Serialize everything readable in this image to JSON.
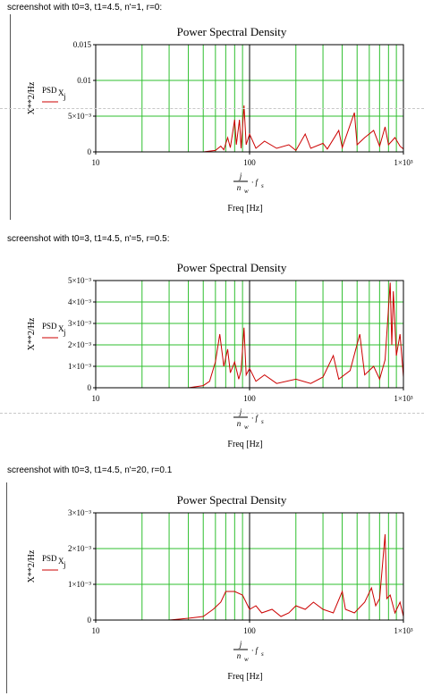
{
  "captions": [
    "screenshot with t0=3, t1=4.5, n'=1, r=0:",
    "screenshot with t0=3, t1=4.5, n'=5, r=0.5:",
    "screenshot with t0=3, t1=4.5, n'=20, r=0.1"
  ],
  "colors": {
    "series": "#cc0000",
    "grid": "#2fbf2f",
    "frame": "#000000",
    "cursor": "#000000"
  },
  "chart_data": [
    {
      "type": "line",
      "title": "Power Spectral Density",
      "xlabel": "Freq [Hz]",
      "xlabel_expr": {
        "num": "j",
        "den": "n_w",
        "tail": "· f_s"
      },
      "ylabel": "X**2/Hz",
      "legend": "PSDX_j",
      "x_scale": "log",
      "xlim": [
        10,
        1000
      ],
      "ylim": [
        0,
        0.015
      ],
      "x_ticks": [
        "10",
        "100",
        "1×10³"
      ],
      "y_ticks": [
        {
          "v": 0,
          "t": "0"
        },
        {
          "v": 0.005,
          "t": "5×10⁻³"
        },
        {
          "v": 0.01,
          "t": "0.01"
        },
        {
          "v": 0.015,
          "t": "0.015"
        }
      ],
      "series": [
        {
          "name": "PSDX_j",
          "points": [
            [
              10,
              0
            ],
            [
              50,
              0
            ],
            [
              60,
              0.0002
            ],
            [
              65,
              0.0008
            ],
            [
              68,
              0.0003
            ],
            [
              72,
              0.002
            ],
            [
              75,
              0.0006
            ],
            [
              80,
              0.0045
            ],
            [
              82,
              0.001
            ],
            [
              86,
              0.0045
            ],
            [
              88,
              0.0005
            ],
            [
              92,
              0.0065
            ],
            [
              95,
              0.001
            ],
            [
              100,
              0.0025
            ],
            [
              110,
              0.0005
            ],
            [
              125,
              0.0015
            ],
            [
              150,
              0.0005
            ],
            [
              180,
              0.001
            ],
            [
              200,
              0.0002
            ],
            [
              230,
              0.0025
            ],
            [
              250,
              0.0005
            ],
            [
              300,
              0.0012
            ],
            [
              320,
              0.0004
            ],
            [
              380,
              0.003
            ],
            [
              400,
              0.0006
            ],
            [
              480,
              0.0055
            ],
            [
              500,
              0.001
            ],
            [
              560,
              0.002
            ],
            [
              640,
              0.003
            ],
            [
              700,
              0.0008
            ],
            [
              760,
              0.0035
            ],
            [
              800,
              0.001
            ],
            [
              880,
              0.002
            ],
            [
              950,
              0.0008
            ],
            [
              1000,
              0.0004
            ]
          ]
        }
      ]
    },
    {
      "type": "line",
      "title": "Power Spectral Density",
      "xlabel": "Freq [Hz]",
      "xlabel_expr": {
        "num": "j",
        "den": "n_w",
        "tail": "· f_s"
      },
      "ylabel": "X**2/Hz",
      "legend": "PSDX_j",
      "x_scale": "log",
      "xlim": [
        10,
        1000
      ],
      "ylim": [
        0,
        0.005
      ],
      "x_ticks": [
        "10",
        "100",
        "1×10³"
      ],
      "y_ticks": [
        {
          "v": 0,
          "t": "0"
        },
        {
          "v": 0.001,
          "t": "1×10⁻³"
        },
        {
          "v": 0.002,
          "t": "2×10⁻³"
        },
        {
          "v": 0.003,
          "t": "3×10⁻³"
        },
        {
          "v": 0.004,
          "t": "4×10⁻³"
        },
        {
          "v": 0.005,
          "t": "5×10⁻³"
        }
      ],
      "series": [
        {
          "name": "PSDX_j",
          "points": [
            [
              10,
              0
            ],
            [
              40,
              0
            ],
            [
              50,
              0.0001
            ],
            [
              55,
              0.0003
            ],
            [
              60,
              0.0012
            ],
            [
              64,
              0.0025
            ],
            [
              68,
              0.001
            ],
            [
              72,
              0.0018
            ],
            [
              75,
              0.0007
            ],
            [
              80,
              0.0012
            ],
            [
              85,
              0.0004
            ],
            [
              88,
              0.0008
            ],
            [
              92,
              0.0028
            ],
            [
              95,
              0.0006
            ],
            [
              100,
              0.0009
            ],
            [
              110,
              0.0003
            ],
            [
              125,
              0.0006
            ],
            [
              150,
              0.0002
            ],
            [
              200,
              0.0004
            ],
            [
              250,
              0.0002
            ],
            [
              300,
              0.0005
            ],
            [
              350,
              0.0015
            ],
            [
              380,
              0.0004
            ],
            [
              450,
              0.0008
            ],
            [
              520,
              0.0025
            ],
            [
              560,
              0.0006
            ],
            [
              640,
              0.001
            ],
            [
              700,
              0.0004
            ],
            [
              760,
              0.0013
            ],
            [
              820,
              0.0049
            ],
            [
              840,
              0.002
            ],
            [
              860,
              0.0045
            ],
            [
              900,
              0.0015
            ],
            [
              950,
              0.0025
            ],
            [
              1000,
              0.0005
            ]
          ]
        }
      ]
    },
    {
      "type": "line",
      "title": "Power Spectral Density",
      "xlabel": "Freq [Hz]",
      "xlabel_expr": {
        "num": "j",
        "den": "n_w",
        "tail": "· f_s"
      },
      "ylabel": "X**2/Hz",
      "legend": "PSDX_j",
      "x_scale": "log",
      "xlim": [
        10,
        1000
      ],
      "ylim": [
        0,
        0.003
      ],
      "x_ticks": [
        "10",
        "100",
        "1×10³"
      ],
      "y_ticks": [
        {
          "v": 0,
          "t": "0"
        },
        {
          "v": 0.001,
          "t": "1×10⁻³"
        },
        {
          "v": 0.002,
          "t": "2×10⁻³"
        },
        {
          "v": 0.003,
          "t": "3×10⁻³"
        }
      ],
      "series": [
        {
          "name": "PSDX_j",
          "points": [
            [
              10,
              0
            ],
            [
              30,
              0
            ],
            [
              40,
              5e-05
            ],
            [
              50,
              0.0001
            ],
            [
              58,
              0.0003
            ],
            [
              65,
              0.0005
            ],
            [
              70,
              0.0008
            ],
            [
              80,
              0.0008
            ],
            [
              90,
              0.0007
            ],
            [
              100,
              0.0003
            ],
            [
              110,
              0.0004
            ],
            [
              120,
              0.0002
            ],
            [
              140,
              0.0003
            ],
            [
              160,
              0.0001
            ],
            [
              180,
              0.0002
            ],
            [
              200,
              0.0004
            ],
            [
              230,
              0.0003
            ],
            [
              260,
              0.0005
            ],
            [
              300,
              0.0003
            ],
            [
              350,
              0.0002
            ],
            [
              400,
              0.0008
            ],
            [
              420,
              0.0003
            ],
            [
              480,
              0.0002
            ],
            [
              560,
              0.0005
            ],
            [
              620,
              0.0009
            ],
            [
              660,
              0.0004
            ],
            [
              700,
              0.0006
            ],
            [
              760,
              0.0024
            ],
            [
              780,
              0.0006
            ],
            [
              820,
              0.0007
            ],
            [
              880,
              0.0002
            ],
            [
              950,
              0.0005
            ],
            [
              1000,
              0.0001
            ]
          ]
        }
      ]
    }
  ]
}
